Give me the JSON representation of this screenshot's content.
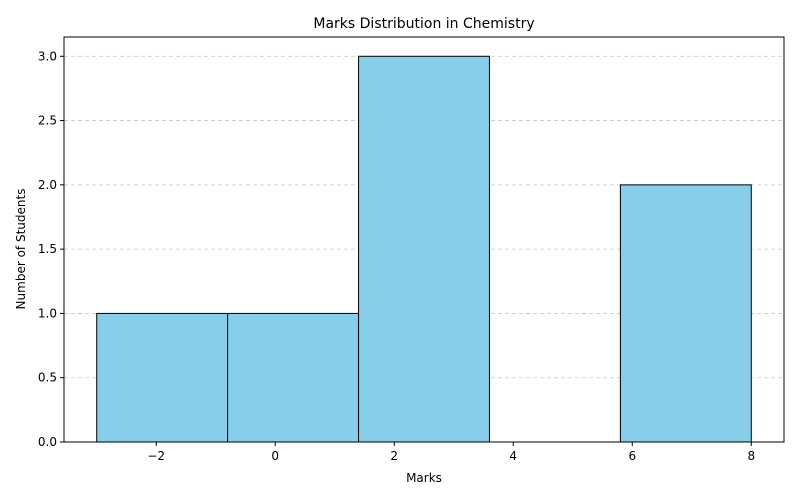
{
  "chart_data": {
    "type": "bar",
    "title": "Marks Distribution in Chemistry",
    "xlabel": "Marks",
    "ylabel": "Number of Students",
    "bins": [
      {
        "start": -3.0,
        "end": -0.8,
        "count": 1
      },
      {
        "start": -0.8,
        "end": 1.4,
        "count": 1
      },
      {
        "start": 1.4,
        "end": 3.6,
        "count": 3
      },
      {
        "start": 3.6,
        "end": 5.8,
        "count": 0
      },
      {
        "start": 5.8,
        "end": 8.0,
        "count": 2
      }
    ],
    "xlim": [
      -3.55,
      8.55
    ],
    "ylim": [
      0,
      3.15
    ],
    "xticks": [
      -2,
      0,
      2,
      4,
      6,
      8
    ],
    "xtick_labels": [
      "−2",
      "0",
      "2",
      "4",
      "6",
      "8"
    ],
    "yticks": [
      0,
      0.5,
      1,
      1.5,
      2,
      2.5,
      3
    ],
    "ytick_labels": [
      "0.0",
      "0.5",
      "1.0",
      "1.5",
      "2.0",
      "2.5",
      "3.0"
    ],
    "grid": {
      "axis": "y",
      "style": "dashed"
    },
    "bar_color": "#87CEEB",
    "edge_color": "#000000",
    "grid_color": "#c8c8c8"
  }
}
